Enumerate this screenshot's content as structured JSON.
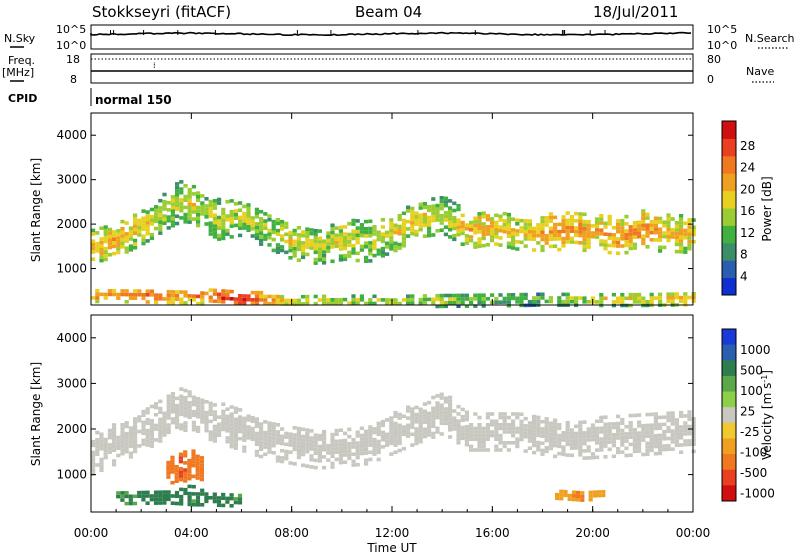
{
  "header": {
    "station": "Stokkseyri (fitACF)",
    "beam": "Beam 04",
    "date": "18/Jul/2011"
  },
  "top_panels": {
    "nsky_label": "N.Sky",
    "nsky_ticks": [
      "10^5",
      "10^0"
    ],
    "nsearch_label": "N.Search",
    "nsearch_ticks": [
      "10^5",
      "10^0"
    ],
    "freq_label": "Freq.",
    "freq_unit": "[MHz]",
    "freq_ticks": [
      "18",
      "8"
    ],
    "nave_label": "Nave",
    "nave_ticks": [
      "80",
      "0"
    ],
    "cpid_label": "CPID",
    "cpid_value": "normal 150"
  },
  "axes": {
    "ylabel": "Slant Range [km]",
    "yticks": [
      "1000",
      "2000",
      "3000",
      "4000"
    ],
    "xticks": [
      "00:00",
      "04:00",
      "08:00",
      "12:00",
      "16:00",
      "20:00",
      "00:00"
    ],
    "xlabel": "Time UT"
  },
  "colorbars": {
    "power": {
      "label": "Power [dB]",
      "ticks": [
        "4",
        "8",
        "12",
        "16",
        "20",
        "24",
        "28"
      ],
      "colors": [
        "#0f2fd0",
        "#2a5fb0",
        "#3a8f6a",
        "#40b040",
        "#9acd32",
        "#e8d020",
        "#f0a020",
        "#f07820",
        "#e84020",
        "#d01010"
      ]
    },
    "velocity": {
      "label": "Velocity [m s",
      "label_sup": "-1",
      "label_end": "]",
      "ticks": [
        "1000",
        "500",
        "100",
        "25",
        "-25",
        "-100",
        "-500",
        "-1000"
      ],
      "colors": [
        "#1a3ad8",
        "#2a5fb0",
        "#2e7d4e",
        "#5aa84a",
        "#8cd04a",
        "#c8c8c0",
        "#f0c830",
        "#f0a020",
        "#f07820",
        "#e84020",
        "#d01010"
      ],
      "ground_scatter": "#c8c8c0"
    }
  },
  "chart_data": [
    {
      "type": "heatmap",
      "title": "",
      "xlabel": "",
      "ylabel": "Slant Range [km]",
      "xlim": [
        0,
        24
      ],
      "ylim": [
        180,
        4500
      ],
      "value": "Power [dB]",
      "clim": [
        0,
        30
      ],
      "bands": [
        {
          "x": [
            0.0,
            1.0,
            2.0,
            3.0,
            3.5,
            4.0,
            5.0,
            6.0,
            7.0,
            8.0,
            9.0,
            10.0,
            11.0,
            12.0,
            13.0,
            14.0,
            15.0,
            16.0,
            17.0,
            18.0,
            19.0,
            20.0,
            21.0,
            22.0,
            23.0,
            24.0
          ],
          "center_km": [
            1550,
            1700,
            2000,
            2400,
            2550,
            2500,
            2150,
            2200,
            1900,
            1650,
            1550,
            1700,
            1650,
            1850,
            2150,
            2250,
            1900,
            2000,
            1850,
            1850,
            1900,
            1850,
            1800,
            1900,
            1850,
            1800
          ],
          "width_km": [
            380,
            380,
            400,
            450,
            450,
            420,
            450,
            400,
            400,
            400,
            400,
            450,
            450,
            420,
            400,
            420,
            400,
            400,
            380,
            400,
            420,
            420,
            420,
            450,
            420,
            400
          ],
          "power_db": [
            16,
            16,
            14,
            12,
            12,
            14,
            12,
            12,
            12,
            14,
            12,
            14,
            12,
            14,
            14,
            12,
            16,
            16,
            14,
            18,
            18,
            16,
            18,
            18,
            14,
            16
          ]
        },
        {
          "x": [
            0.0,
            2.0,
            4.0,
            6.0,
            8.0,
            10.0,
            12.0,
            14.0,
            16.0,
            18.0,
            20.0,
            22.0,
            24.0
          ],
          "center_km": [
            450,
            450,
            420,
            360,
            300,
            300,
            300,
            320,
            340,
            350,
            330,
            350,
            380
          ],
          "width_km": [
            150,
            160,
            160,
            180,
            140,
            120,
            130,
            130,
            140,
            130,
            120,
            140,
            150
          ],
          "power_db": [
            18,
            20,
            18,
            24,
            14,
            12,
            12,
            12,
            10,
            10,
            14,
            14,
            16
          ]
        }
      ]
    },
    {
      "type": "heatmap",
      "title": "",
      "xlabel": "Time UT",
      "ylabel": "Slant Range [km]",
      "xlim": [
        0,
        24
      ],
      "ylim": [
        180,
        4500
      ],
      "value": "Velocity [m s-1]",
      "clim": [
        -1000,
        1000
      ],
      "bands": [
        {
          "x": [
            0.0,
            2.0,
            3.5,
            5.0,
            7.0,
            9.0,
            11.0,
            13.0,
            14.0,
            15.0,
            17.0,
            19.0,
            21.0,
            22.5,
            24.0
          ],
          "center_km": [
            1500,
            2000,
            2500,
            2200,
            1800,
            1600,
            1700,
            2200,
            2400,
            2000,
            2000,
            1800,
            1900,
            1950,
            2000
          ],
          "width_km": [
            450,
            450,
            450,
            450,
            420,
            420,
            420,
            450,
            450,
            420,
            420,
            420,
            450,
            450,
            450
          ],
          "velocity_ms": [
            0,
            0,
            0,
            0,
            0,
            0,
            0,
            0,
            0,
            0,
            0,
            0,
            0,
            0,
            0
          ]
        },
        {
          "x": [
            1.0,
            2.0,
            3.0,
            4.0,
            5.0,
            6.0
          ],
          "center_km": [
            550,
            560,
            560,
            600,
            520,
            480
          ],
          "width_km": [
            150,
            150,
            140,
            220,
            150,
            140
          ],
          "velocity_ms": [
            100,
            120,
            150,
            110,
            130,
            100
          ]
        },
        {
          "x": [
            3.0,
            3.5,
            4.0,
            4.5
          ],
          "center_km": [
            1050,
            1200,
            1300,
            1150
          ],
          "width_km": [
            300,
            350,
            300,
            250
          ],
          "velocity_ms": [
            -300,
            -400,
            -350,
            -300
          ]
        },
        {
          "x": [
            18.5,
            19.5,
            20.5
          ],
          "center_km": [
            620,
            600,
            610
          ],
          "width_km": [
            100,
            120,
            100
          ],
          "velocity_ms": [
            -150,
            -200,
            -150
          ]
        }
      ]
    }
  ]
}
